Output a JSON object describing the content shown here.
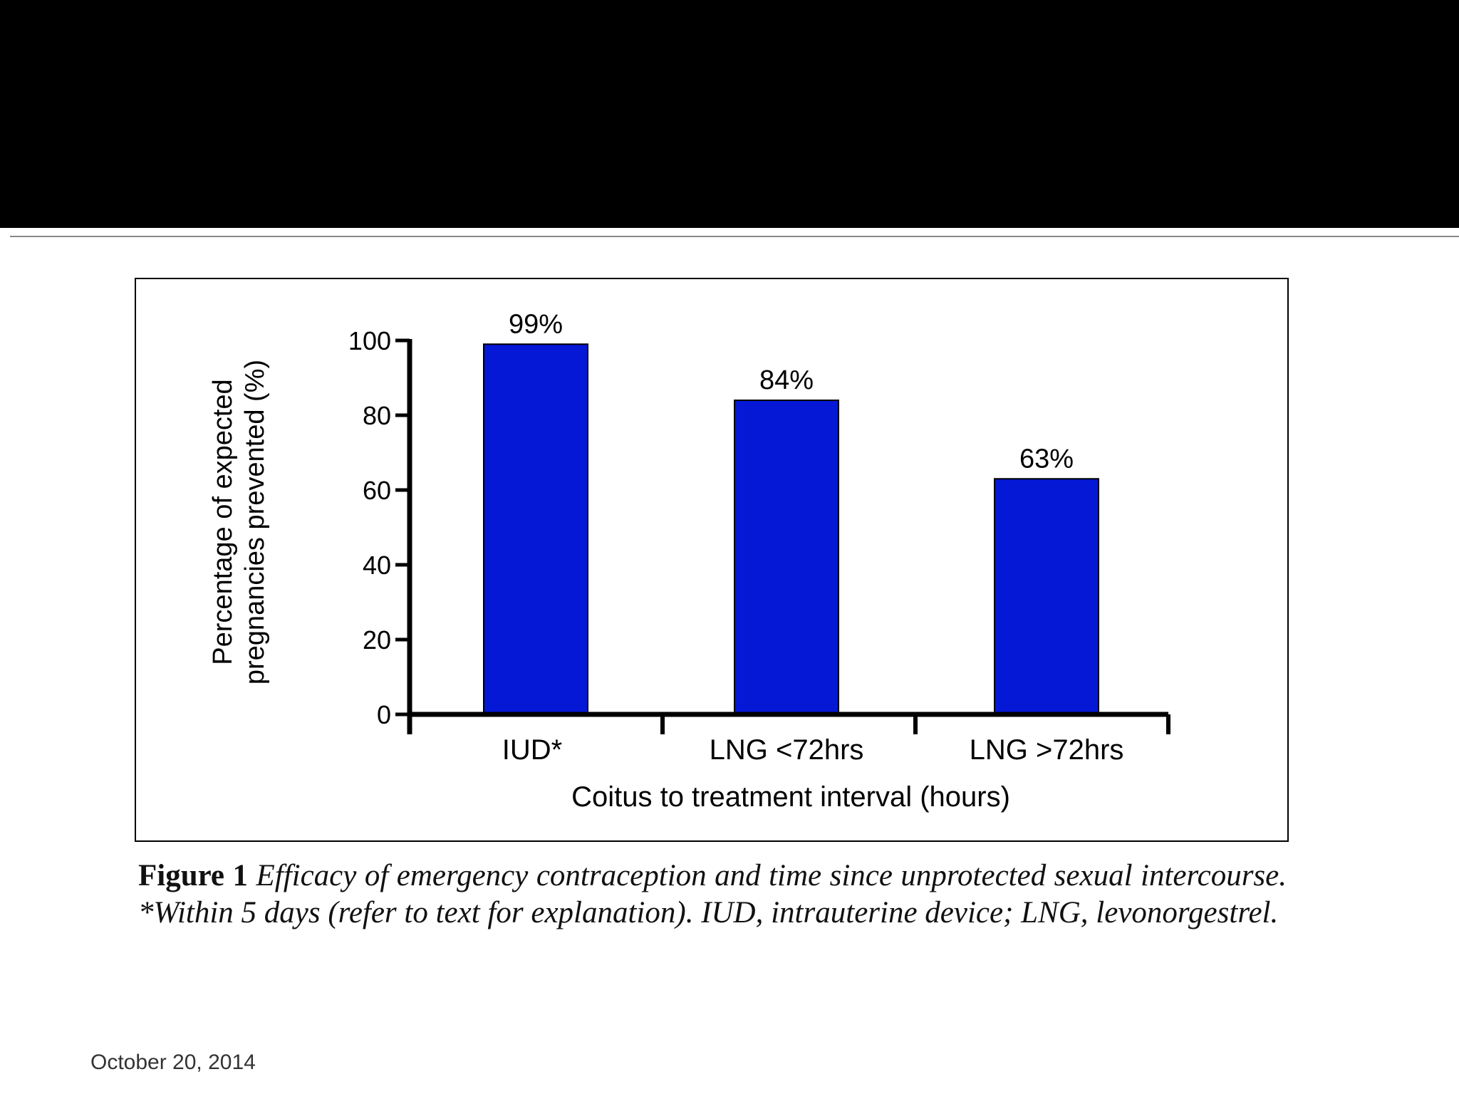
{
  "slide": {
    "footer_date": "October 20, 2014"
  },
  "figure": {
    "caption_label": "Figure 1",
    "caption_text": "Efficacy of emergency contraception and time since unprotected sexual intercourse. *Within 5 days (refer to text for explanation). IUD, intrauterine device; LNG, levonorgestrel."
  },
  "colors": {
    "header": "#000000",
    "bar": "#0418d6",
    "axis": "#000000"
  },
  "chart_data": {
    "type": "bar",
    "categories": [
      "IUD*",
      "LNG <72hrs",
      "LNG >72hrs"
    ],
    "values": [
      99,
      84,
      63
    ],
    "value_labels": [
      "99%",
      "84%",
      "63%"
    ],
    "xlabel": "Coitus to treatment interval (hours)",
    "ylabel_lines": [
      "Percentage of expected",
      "pregnancies prevented (%)"
    ],
    "ylim": [
      0,
      100
    ],
    "yticks": [
      0,
      20,
      40,
      60,
      80,
      100
    ],
    "grid": false,
    "legend": "none"
  }
}
